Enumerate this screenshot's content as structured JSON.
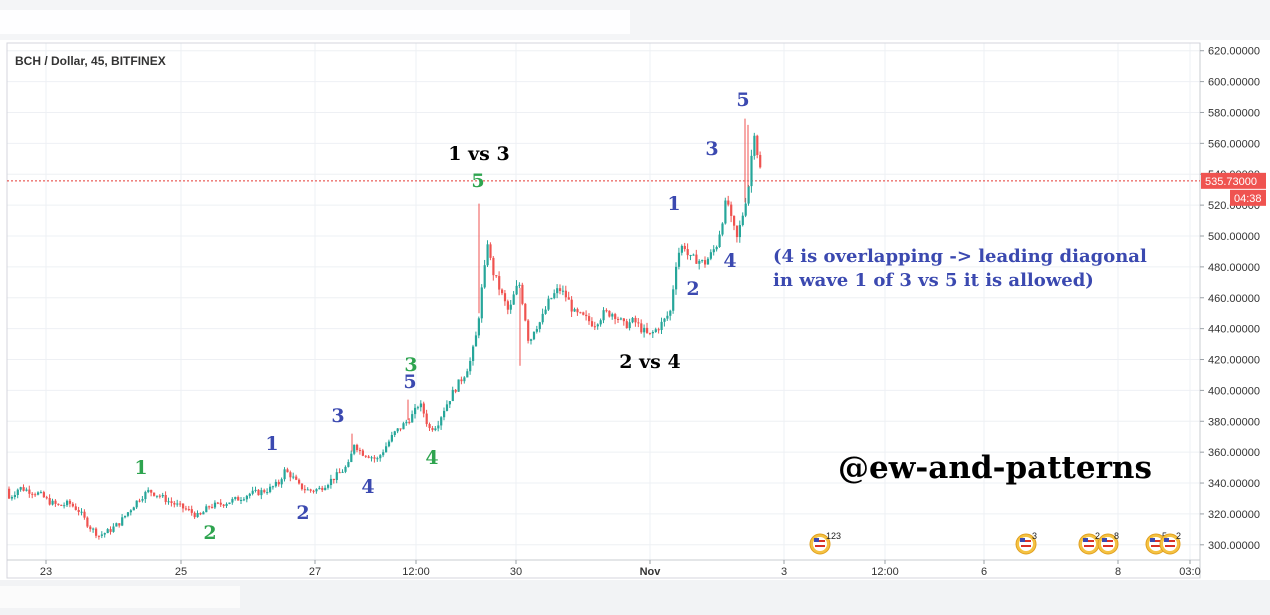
{
  "chart_data": {
    "type": "candlestick",
    "title": "BCH / Dollar, 45, BITFINEX",
    "ylim": [
      288,
      625
    ],
    "y_ticks": [
      "620.00000",
      "600.00000",
      "580.00000",
      "560.00000",
      "540.00000",
      "520.00000",
      "500.00000",
      "480.00000",
      "460.00000",
      "440.00000",
      "420.00000",
      "400.00000",
      "380.00000",
      "360.00000",
      "340.00000",
      "320.00000",
      "300.00000"
    ],
    "y_tick_values": [
      620,
      600,
      580,
      560,
      540,
      520,
      500,
      480,
      460,
      440,
      420,
      400,
      380,
      360,
      340,
      320,
      300
    ],
    "x_ticks": [
      "23",
      "25",
      "27",
      "12:00",
      "30",
      "Nov",
      "3",
      "12:00",
      "6",
      "8",
      "03:0"
    ],
    "last_price": 535.73,
    "last_price_label": "535.73000",
    "countdown_label": "04:38",
    "price_path": [
      [
        0,
        330
      ],
      [
        10,
        337
      ],
      [
        20,
        335
      ],
      [
        30,
        333
      ],
      [
        40,
        328
      ],
      [
        50,
        325
      ],
      [
        60,
        327
      ],
      [
        70,
        322
      ],
      [
        80,
        312
      ],
      [
        90,
        306
      ],
      [
        100,
        309
      ],
      [
        110,
        314
      ],
      [
        120,
        322
      ],
      [
        130,
        330
      ],
      [
        140,
        335
      ],
      [
        150,
        332
      ],
      [
        160,
        328
      ],
      [
        170,
        325
      ],
      [
        180,
        322
      ],
      [
        190,
        318
      ],
      [
        200,
        325
      ],
      [
        210,
        326
      ],
      [
        220,
        328
      ],
      [
        230,
        330
      ],
      [
        240,
        333
      ],
      [
        250,
        334
      ],
      [
        260,
        336
      ],
      [
        270,
        340
      ],
      [
        275,
        348
      ],
      [
        282,
        345
      ],
      [
        290,
        338
      ],
      [
        300,
        335
      ],
      [
        310,
        336
      ],
      [
        320,
        341
      ],
      [
        330,
        346
      ],
      [
        340,
        352
      ],
      [
        345,
        366
      ],
      [
        352,
        360
      ],
      [
        360,
        358
      ],
      [
        368,
        355
      ],
      [
        375,
        362
      ],
      [
        385,
        372
      ],
      [
        395,
        378
      ],
      [
        405,
        385
      ],
      [
        410,
        392
      ],
      [
        415,
        385
      ],
      [
        420,
        375
      ],
      [
        428,
        378
      ],
      [
        435,
        388
      ],
      [
        445,
        400
      ],
      [
        455,
        410
      ],
      [
        462,
        420
      ],
      [
        468,
        438
      ],
      [
        472,
        462
      ],
      [
        476,
        480
      ],
      [
        479,
        500
      ],
      [
        482,
        480
      ],
      [
        488,
        470
      ],
      [
        495,
        458
      ],
      [
        500,
        450
      ],
      [
        505,
        462
      ],
      [
        510,
        470
      ],
      [
        515,
        452
      ],
      [
        520,
        430
      ],
      [
        525,
        440
      ],
      [
        532,
        445
      ],
      [
        540,
        458
      ],
      [
        550,
        466
      ],
      [
        558,
        460
      ],
      [
        565,
        450
      ],
      [
        575,
        447
      ],
      [
        585,
        443
      ],
      [
        595,
        450
      ],
      [
        605,
        450
      ],
      [
        615,
        442
      ],
      [
        625,
        445
      ],
      [
        632,
        440
      ],
      [
        640,
        435
      ],
      [
        648,
        440
      ],
      [
        655,
        445
      ],
      [
        662,
        452
      ],
      [
        666,
        480
      ],
      [
        670,
        490
      ],
      [
        675,
        495
      ],
      [
        680,
        485
      ],
      [
        688,
        485
      ],
      [
        695,
        482
      ],
      [
        702,
        488
      ],
      [
        708,
        495
      ],
      [
        713,
        510
      ],
      [
        718,
        525
      ],
      [
        722,
        510
      ],
      [
        728,
        498
      ],
      [
        734,
        515
      ],
      [
        740,
        535
      ],
      [
        745,
        570
      ],
      [
        748,
        555
      ],
      [
        752,
        540
      ],
      [
        756,
        528
      ],
      [
        760,
        535
      ],
      [
        764,
        534
      ]
    ],
    "events": [
      {
        "label": "123",
        "x": 820
      },
      {
        "label": "3",
        "x": 1026
      },
      {
        "label": "2",
        "x": 1089
      },
      {
        "label": "8",
        "x": 1108
      },
      {
        "label": "5",
        "x": 1156
      },
      {
        "label": "2",
        "x": 1170
      }
    ]
  },
  "annotations": [
    {
      "text": "1",
      "color": "#2ea44f",
      "x": 141,
      "y": 474
    },
    {
      "text": "2",
      "color": "#2ea44f",
      "x": 210,
      "y": 539
    },
    {
      "text": "1",
      "color": "#3b49b0",
      "x": 272,
      "y": 450
    },
    {
      "text": "2",
      "color": "#3b49b0",
      "x": 303,
      "y": 519
    },
    {
      "text": "3",
      "color": "#3b49b0",
      "x": 338,
      "y": 422
    },
    {
      "text": "4",
      "color": "#3b49b0",
      "x": 368,
      "y": 493
    },
    {
      "text": "3",
      "color": "#2ea44f",
      "x": 411,
      "y": 371
    },
    {
      "text": "5",
      "color": "#3b49b0",
      "x": 410,
      "y": 388
    },
    {
      "text": "4",
      "color": "#2ea44f",
      "x": 432,
      "y": 464
    },
    {
      "text": "1 vs 3",
      "color": "#000000",
      "x": 479,
      "y": 160
    },
    {
      "text": "5",
      "color": "#2ea44f",
      "x": 478,
      "y": 187
    },
    {
      "text": "2 vs 4",
      "color": "#000000",
      "x": 650,
      "y": 368
    },
    {
      "text": "1",
      "color": "#3b49b0",
      "x": 674,
      "y": 210
    },
    {
      "text": "2",
      "color": "#3b49b0",
      "x": 693,
      "y": 295
    },
    {
      "text": "3",
      "color": "#3b49b0",
      "x": 712,
      "y": 155
    },
    {
      "text": "4",
      "color": "#3b49b0",
      "x": 730,
      "y": 267
    },
    {
      "text": "5",
      "color": "#3b49b0",
      "x": 743,
      "y": 106
    }
  ],
  "note": {
    "line1": "(4 is overlapping -> leading diagonal",
    "line2": "in wave 1 of 3 vs 5 it is allowed)",
    "color": "#3b49b0"
  },
  "watermark": "@ew-and-patterns",
  "colors": {
    "up": "#26a69a",
    "down": "#ef5350",
    "grid": "#eef0f4",
    "price_line": "#e53935",
    "axis_text": "#333333"
  }
}
